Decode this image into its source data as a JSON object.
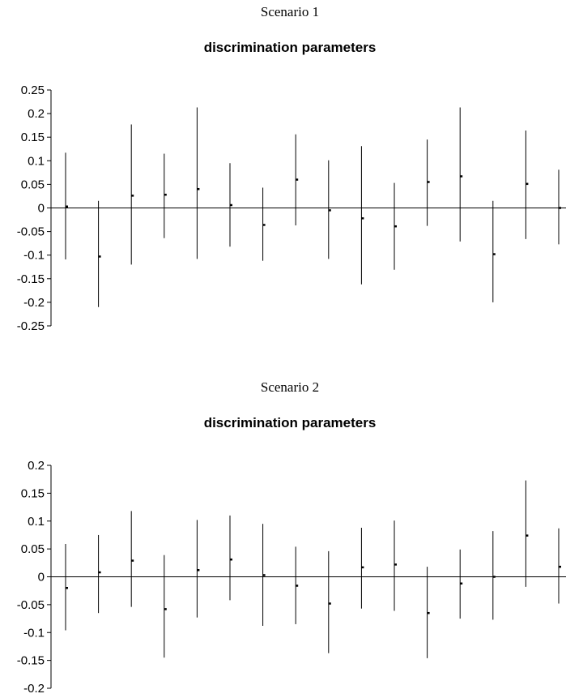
{
  "chart_data": [
    {
      "type": "errorbar",
      "scenario": "Scenario 1",
      "title": "discrimination parameters",
      "xlabel": "",
      "ylabel": "",
      "ylim": [
        -0.25,
        0.25
      ],
      "yticks": [
        0.25,
        0.2,
        0.15,
        0.1,
        0.05,
        0,
        -0.05,
        -0.1,
        -0.15,
        -0.2,
        -0.25
      ],
      "ytick_labels": [
        "0.25",
        "0.2",
        "0.15",
        "0.1",
        "0.05",
        "0",
        "-0.05",
        "-0.1",
        "-0.15",
        "-0.2",
        "-0.25"
      ],
      "points": [
        {
          "value": 0.003,
          "lower": -0.109,
          "upper": 0.117
        },
        {
          "value": -0.103,
          "lower": -0.21,
          "upper": 0.015
        },
        {
          "value": 0.026,
          "lower": -0.12,
          "upper": 0.177
        },
        {
          "value": 0.028,
          "lower": -0.064,
          "upper": 0.115
        },
        {
          "value": 0.04,
          "lower": -0.108,
          "upper": 0.213
        },
        {
          "value": 0.006,
          "lower": -0.082,
          "upper": 0.095
        },
        {
          "value": -0.036,
          "lower": -0.112,
          "upper": 0.043
        },
        {
          "value": 0.06,
          "lower": -0.037,
          "upper": 0.156
        },
        {
          "value": -0.005,
          "lower": -0.108,
          "upper": 0.101
        },
        {
          "value": -0.022,
          "lower": -0.162,
          "upper": 0.131
        },
        {
          "value": -0.039,
          "lower": -0.131,
          "upper": 0.053
        },
        {
          "value": 0.055,
          "lower": -0.038,
          "upper": 0.145
        },
        {
          "value": 0.067,
          "lower": -0.071,
          "upper": 0.213
        },
        {
          "value": -0.098,
          "lower": -0.2,
          "upper": 0.015
        },
        {
          "value": 0.051,
          "lower": -0.066,
          "upper": 0.164
        },
        {
          "value": 0.0,
          "lower": -0.077,
          "upper": 0.081
        }
      ]
    },
    {
      "type": "errorbar",
      "scenario": "Scenario 2",
      "title": "discrimination parameters",
      "xlabel": "",
      "ylabel": "",
      "ylim": [
        -0.2,
        0.2
      ],
      "yticks": [
        0.2,
        0.15,
        0.1,
        0.05,
        0,
        -0.05,
        -0.1,
        -0.15,
        -0.2
      ],
      "ytick_labels": [
        "0.2",
        "0.15",
        "0.1",
        "0.05",
        "0",
        "-0.05",
        "-0.1",
        "-0.15",
        "-0.2"
      ],
      "points": [
        {
          "value": -0.02,
          "lower": -0.096,
          "upper": 0.059
        },
        {
          "value": 0.008,
          "lower": -0.065,
          "upper": 0.075
        },
        {
          "value": 0.029,
          "lower": -0.054,
          "upper": 0.118
        },
        {
          "value": -0.058,
          "lower": -0.145,
          "upper": 0.039
        },
        {
          "value": 0.012,
          "lower": -0.073,
          "upper": 0.102
        },
        {
          "value": 0.031,
          "lower": -0.042,
          "upper": 0.11
        },
        {
          "value": 0.003,
          "lower": -0.088,
          "upper": 0.095
        },
        {
          "value": -0.016,
          "lower": -0.085,
          "upper": 0.054
        },
        {
          "value": -0.048,
          "lower": -0.137,
          "upper": 0.046
        },
        {
          "value": 0.017,
          "lower": -0.057,
          "upper": 0.088
        },
        {
          "value": 0.022,
          "lower": -0.061,
          "upper": 0.101
        },
        {
          "value": -0.065,
          "lower": -0.146,
          "upper": 0.018
        },
        {
          "value": -0.012,
          "lower": -0.075,
          "upper": 0.049
        },
        {
          "value": 0.0,
          "lower": -0.077,
          "upper": 0.082
        },
        {
          "value": 0.074,
          "lower": -0.018,
          "upper": 0.173
        },
        {
          "value": 0.018,
          "lower": -0.048,
          "upper": 0.087
        }
      ]
    }
  ]
}
